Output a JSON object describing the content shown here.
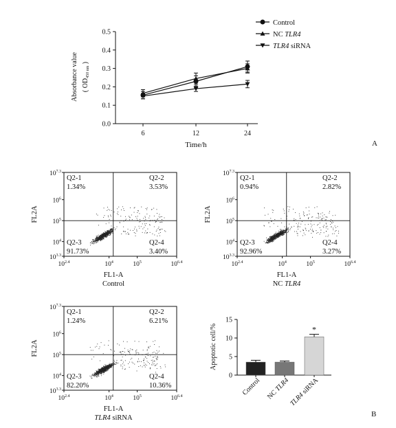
{
  "panel_a": {
    "letter": "A",
    "chart_data": {
      "type": "line",
      "x": [
        6,
        12,
        24
      ],
      "xlabel": "Time/h",
      "ylabel_main": "Absorbance value",
      "ylabel_sub_open": "( OD",
      "ylabel_sub_sub": "450 nm",
      "ylabel_sub_close": " )",
      "ylim": [
        0.0,
        0.5
      ],
      "yticks": [
        "0.0",
        "0.1",
        "0.2",
        "0.3",
        "0.4",
        "0.5"
      ],
      "xticks": [
        "6",
        "12",
        "24"
      ],
      "series": [
        {
          "name_plain": "Control",
          "name_italic": "",
          "marker": "circle",
          "values": [
            0.155,
            0.23,
            0.31
          ],
          "err": [
            0.02,
            0.03,
            0.03
          ]
        },
        {
          "name_plain": "NC ",
          "name_italic": "TLR4",
          "name_after": "",
          "marker": "triangle-up",
          "values": [
            0.165,
            0.245,
            0.3
          ],
          "err": [
            0.02,
            0.03,
            0.025
          ]
        },
        {
          "name_plain": "",
          "name_italic": "TLR4",
          "name_after": " siRNA",
          "marker": "triangle-down",
          "values": [
            0.15,
            0.19,
            0.215
          ],
          "err": [
            0.015,
            0.015,
            0.02
          ]
        }
      ]
    }
  },
  "panel_b": {
    "letter": "B",
    "flow_plots": [
      {
        "q1": "Q2-1",
        "v1": "1.34%",
        "q2": "Q2-2",
        "v2": "3.53%",
        "q3": "Q2-3",
        "v3": "91.73%",
        "q4": "Q2-4",
        "v4": "3.40%",
        "x_axis": "FL1-A",
        "y_axis": "FL2A",
        "caption_plain": "Control",
        "caption_italic": "",
        "caption_after": ""
      },
      {
        "q1": "Q2-1",
        "v1": "0.94%",
        "q2": "Q2-2",
        "v2": "2.82%",
        "q3": "Q2-3",
        "v3": "92.96%",
        "q4": "Q2-4",
        "v4": "3.27%",
        "x_axis": "FL1-A",
        "y_axis": "FL2A",
        "caption_plain": "NC ",
        "caption_italic": "TLR4",
        "caption_after": ""
      },
      {
        "q1": "Q2-1",
        "v1": "1.24%",
        "q2": "Q2-2",
        "v2": "6.21%",
        "q3": "Q2-3",
        "v3": "82.20%",
        "q4": "Q2-4",
        "v4": "10.36%",
        "x_axis": "FL1-A",
        "y_axis": "FL2A",
        "caption_plain": "",
        "caption_italic": "TLR4",
        "caption_after": " siRNA"
      }
    ],
    "flow_ticks": {
      "x": [
        {
          "base": "10",
          "exp": "2.4"
        },
        {
          "base": "10",
          "exp": "4"
        },
        {
          "base": "10",
          "exp": "5"
        },
        {
          "base": "10",
          "exp": "6.4"
        }
      ],
      "y": [
        {
          "base": "10",
          "exp": "7.3"
        },
        {
          "base": "10",
          "exp": "6"
        },
        {
          "base": "10",
          "exp": "5"
        },
        {
          "base": "10",
          "exp": "4"
        },
        {
          "base": "10",
          "exp": "3.3"
        }
      ]
    },
    "chart_data": {
      "type": "bar",
      "categories": [
        "Control",
        "NC TLR4",
        "TLR4 siRNA"
      ],
      "cat_plain": [
        "Control",
        "NC ",
        ""
      ],
      "cat_italic": [
        "",
        "TLR4",
        "TLR4"
      ],
      "cat_after": [
        "",
        "",
        " siRNA"
      ],
      "values": [
        3.5,
        3.5,
        10.3
      ],
      "err": [
        0.5,
        0.3,
        0.7
      ],
      "colors": [
        "#222222",
        "#777777",
        "#d6d6d6"
      ],
      "ylabel": "Apoptotic cell/%",
      "ylim": [
        0,
        15
      ],
      "yticks": [
        "0",
        "5",
        "10",
        "15"
      ],
      "annotation": "*"
    }
  }
}
